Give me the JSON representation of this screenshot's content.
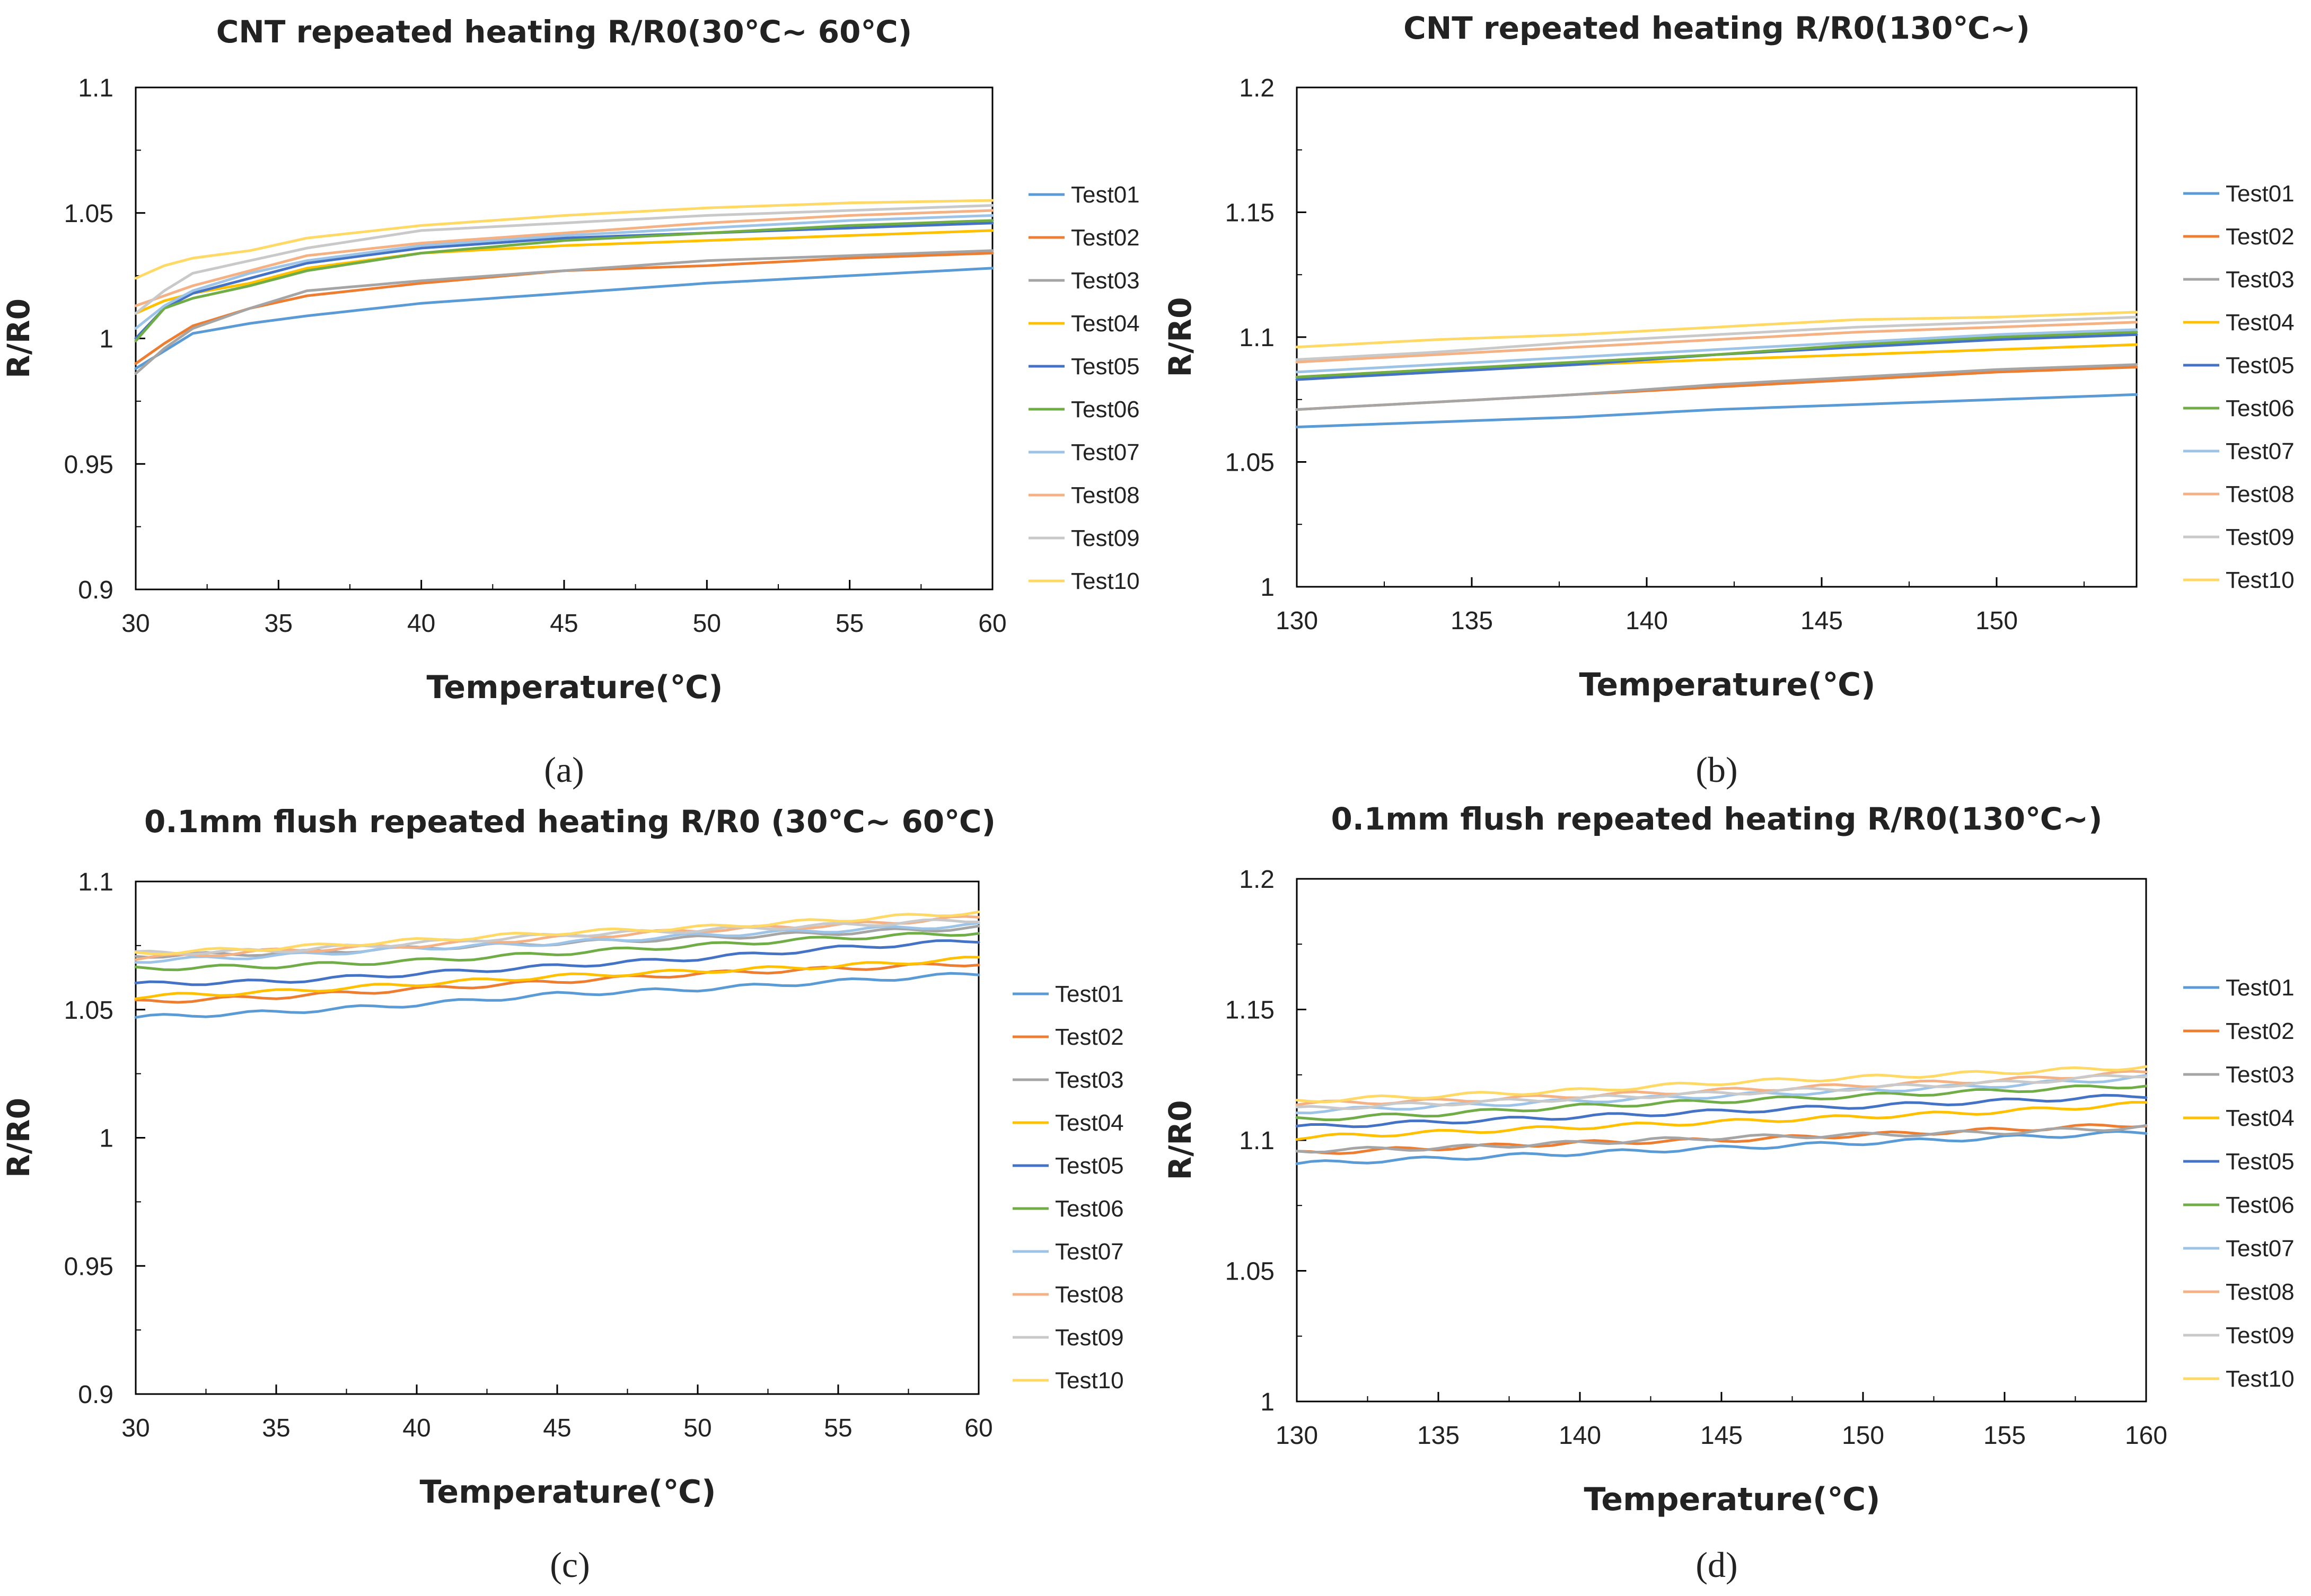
{
  "colors": {
    "Test01": "#5b9bd5",
    "Test02": "#ed7d31",
    "Test03": "#a5a5a5",
    "Test04": "#ffc000",
    "Test05": "#4472c4",
    "Test06": "#70ad47",
    "Test07": "#9dc3e6",
    "Test08": "#f4b183",
    "Test09": "#c9c9c9",
    "Test10": "#ffd966"
  },
  "chart_data": [
    {
      "type": "line",
      "panel": "(a)",
      "title": "CNT repeated heating R/R0(30℃~ 60℃)",
      "xlabel": "Temperature(℃)",
      "ylabel": "R/R0",
      "xlim": [
        30,
        60
      ],
      "ylim": [
        0.9,
        1.1
      ],
      "xticks": [
        30,
        35,
        40,
        45,
        50,
        55,
        60
      ],
      "yticks": [
        0.9,
        0.95,
        1,
        1.05,
        1.1
      ],
      "ytick_labels": [
        "0.9",
        "0.95",
        "1",
        "1.05",
        "1.1"
      ],
      "legend": "right",
      "x": [
        30,
        31,
        32,
        34,
        36,
        40,
        45,
        50,
        55,
        60
      ],
      "series": [
        {
          "name": "Test01",
          "values": [
            0.988,
            0.995,
            1.002,
            1.006,
            1.009,
            1.014,
            1.018,
            1.022,
            1.025,
            1.028
          ]
        },
        {
          "name": "Test02",
          "values": [
            0.99,
            0.998,
            1.005,
            1.012,
            1.017,
            1.022,
            1.027,
            1.029,
            1.032,
            1.034
          ]
        },
        {
          "name": "Test03",
          "values": [
            0.986,
            0.996,
            1.004,
            1.012,
            1.019,
            1.023,
            1.027,
            1.031,
            1.033,
            1.035
          ]
        },
        {
          "name": "Test04",
          "values": [
            1.01,
            1.015,
            1.018,
            1.022,
            1.028,
            1.034,
            1.037,
            1.039,
            1.041,
            1.043
          ]
        },
        {
          "name": "Test05",
          "values": [
            1.0,
            1.012,
            1.018,
            1.024,
            1.03,
            1.036,
            1.04,
            1.042,
            1.044,
            1.046
          ]
        },
        {
          "name": "Test06",
          "values": [
            0.999,
            1.012,
            1.016,
            1.021,
            1.027,
            1.034,
            1.039,
            1.042,
            1.045,
            1.047
          ]
        },
        {
          "name": "Test07",
          "values": [
            1.004,
            1.013,
            1.019,
            1.026,
            1.031,
            1.037,
            1.041,
            1.044,
            1.047,
            1.049
          ]
        },
        {
          "name": "Test08",
          "values": [
            1.013,
            1.017,
            1.021,
            1.027,
            1.033,
            1.038,
            1.042,
            1.046,
            1.049,
            1.051
          ]
        },
        {
          "name": "Test09",
          "values": [
            1.01,
            1.019,
            1.026,
            1.031,
            1.036,
            1.043,
            1.046,
            1.049,
            1.051,
            1.053
          ]
        },
        {
          "name": "Test10",
          "values": [
            1.024,
            1.029,
            1.032,
            1.035,
            1.04,
            1.045,
            1.049,
            1.052,
            1.054,
            1.055
          ]
        }
      ]
    },
    {
      "type": "line",
      "panel": "(b)",
      "title": "CNT repeated heating R/R0(130℃~)",
      "xlabel": "Temperature(℃)",
      "ylabel": "R/R0",
      "xlim": [
        130,
        154
      ],
      "ylim": [
        1.0,
        1.2
      ],
      "xticks": [
        130,
        135,
        140,
        145,
        150
      ],
      "yticks": [
        1.0,
        1.05,
        1.1,
        1.15,
        1.2
      ],
      "ytick_labels": [
        "1",
        "1.05",
        "1.1",
        "1.15",
        "1.2"
      ],
      "legend": "right",
      "x": [
        130,
        134,
        138,
        142,
        146,
        150,
        154
      ],
      "series": [
        {
          "name": "Test01",
          "values": [
            1.064,
            1.066,
            1.068,
            1.071,
            1.073,
            1.075,
            1.077
          ]
        },
        {
          "name": "Test02",
          "values": [
            1.071,
            1.074,
            1.077,
            1.08,
            1.083,
            1.086,
            1.088
          ]
        },
        {
          "name": "Test03",
          "values": [
            1.071,
            1.074,
            1.077,
            1.081,
            1.084,
            1.087,
            1.089
          ]
        },
        {
          "name": "Test04",
          "values": [
            1.084,
            1.087,
            1.089,
            1.091,
            1.093,
            1.095,
            1.097
          ]
        },
        {
          "name": "Test05",
          "values": [
            1.083,
            1.086,
            1.089,
            1.093,
            1.096,
            1.099,
            1.101
          ]
        },
        {
          "name": "Test06",
          "values": [
            1.084,
            1.087,
            1.09,
            1.093,
            1.097,
            1.1,
            1.102
          ]
        },
        {
          "name": "Test07",
          "values": [
            1.086,
            1.089,
            1.092,
            1.095,
            1.098,
            1.101,
            1.103
          ]
        },
        {
          "name": "Test08",
          "values": [
            1.09,
            1.093,
            1.096,
            1.099,
            1.102,
            1.104,
            1.106
          ]
        },
        {
          "name": "Test09",
          "values": [
            1.091,
            1.094,
            1.098,
            1.101,
            1.104,
            1.106,
            1.108
          ]
        },
        {
          "name": "Test10",
          "values": [
            1.096,
            1.099,
            1.101,
            1.104,
            1.107,
            1.108,
            1.11
          ]
        }
      ]
    },
    {
      "type": "line",
      "panel": "(c)",
      "title": "0.1mm flush repeated heating R/R0 (30℃~ 60℃)",
      "xlabel": "Temperature(℃)",
      "ylabel": "R/R0",
      "xlim": [
        30,
        60
      ],
      "ylim": [
        0.9,
        1.1
      ],
      "xticks": [
        30,
        35,
        40,
        45,
        50,
        55,
        60
      ],
      "yticks": [
        0.9,
        0.95,
        1,
        1.05,
        1.1
      ],
      "ytick_labels": [
        "0.9",
        "0.95",
        "1",
        "1.05",
        "1.1"
      ],
      "legend": "right",
      "x": [
        30,
        35,
        40,
        45,
        50,
        55,
        60
      ],
      "series": [
        {
          "name": "Test01",
          "values": [
            1.047,
            1.049,
            1.052,
            1.056,
            1.058,
            1.061,
            1.064
          ]
        },
        {
          "name": "Test02",
          "values": [
            1.053,
            1.055,
            1.058,
            1.061,
            1.064,
            1.066,
            1.068
          ]
        },
        {
          "name": "Test03",
          "values": [
            1.071,
            1.072,
            1.074,
            1.076,
            1.078,
            1.08,
            1.082
          ]
        },
        {
          "name": "Test04",
          "values": [
            1.055,
            1.057,
            1.06,
            1.063,
            1.065,
            1.067,
            1.07
          ]
        },
        {
          "name": "Test05",
          "values": [
            1.06,
            1.061,
            1.064,
            1.067,
            1.07,
            1.074,
            1.077
          ]
        },
        {
          "name": "Test06",
          "values": [
            1.066,
            1.067,
            1.069,
            1.072,
            1.075,
            1.078,
            1.08
          ]
        },
        {
          "name": "Test07",
          "values": [
            1.069,
            1.071,
            1.074,
            1.076,
            1.079,
            1.081,
            1.083
          ]
        },
        {
          "name": "Test08",
          "values": [
            1.07,
            1.073,
            1.075,
            1.078,
            1.081,
            1.083,
            1.086
          ]
        },
        {
          "name": "Test09",
          "values": [
            1.072,
            1.073,
            1.076,
            1.079,
            1.081,
            1.083,
            1.085
          ]
        },
        {
          "name": "Test10",
          "values": [
            1.072,
            1.074,
            1.077,
            1.08,
            1.082,
            1.085,
            1.088
          ]
        }
      ]
    },
    {
      "type": "line",
      "panel": "(d)",
      "title": "0.1mm flush repeated heating R/R0(130℃~)",
      "xlabel": "Temperature(℃)",
      "ylabel": "R/R0",
      "xlim": [
        130,
        160
      ],
      "ylim": [
        1.0,
        1.2
      ],
      "xticks": [
        130,
        135,
        140,
        145,
        150,
        155,
        160
      ],
      "yticks": [
        1.0,
        1.05,
        1.1,
        1.15,
        1.2
      ],
      "ytick_labels": [
        "1",
        "1.05",
        "1.1",
        "1.15",
        "1.2"
      ],
      "legend": "right",
      "x": [
        130,
        135,
        140,
        145,
        150,
        155,
        160
      ],
      "series": [
        {
          "name": "Test01",
          "values": [
            1.091,
            1.093,
            1.095,
            1.097,
            1.099,
            1.101,
            1.103
          ]
        },
        {
          "name": "Test02",
          "values": [
            1.095,
            1.097,
            1.099,
            1.1,
            1.102,
            1.104,
            1.106
          ]
        },
        {
          "name": "Test03",
          "values": [
            1.096,
            1.097,
            1.099,
            1.101,
            1.102,
            1.103,
            1.105
          ]
        },
        {
          "name": "Test04",
          "values": [
            1.101,
            1.103,
            1.105,
            1.107,
            1.109,
            1.111,
            1.114
          ]
        },
        {
          "name": "Test05",
          "values": [
            1.105,
            1.107,
            1.109,
            1.111,
            1.113,
            1.115,
            1.117
          ]
        },
        {
          "name": "Test06",
          "values": [
            1.108,
            1.11,
            1.113,
            1.115,
            1.117,
            1.119,
            1.121
          ]
        },
        {
          "name": "Test07",
          "values": [
            1.111,
            1.113,
            1.115,
            1.117,
            1.119,
            1.121,
            1.124
          ]
        },
        {
          "name": "Test08",
          "values": [
            1.114,
            1.115,
            1.117,
            1.119,
            1.121,
            1.123,
            1.126
          ]
        },
        {
          "name": "Test09",
          "values": [
            1.112,
            1.114,
            1.116,
            1.118,
            1.12,
            1.122,
            1.125
          ]
        },
        {
          "name": "Test10",
          "values": [
            1.115,
            1.117,
            1.119,
            1.122,
            1.124,
            1.126,
            1.128
          ]
        }
      ]
    }
  ]
}
